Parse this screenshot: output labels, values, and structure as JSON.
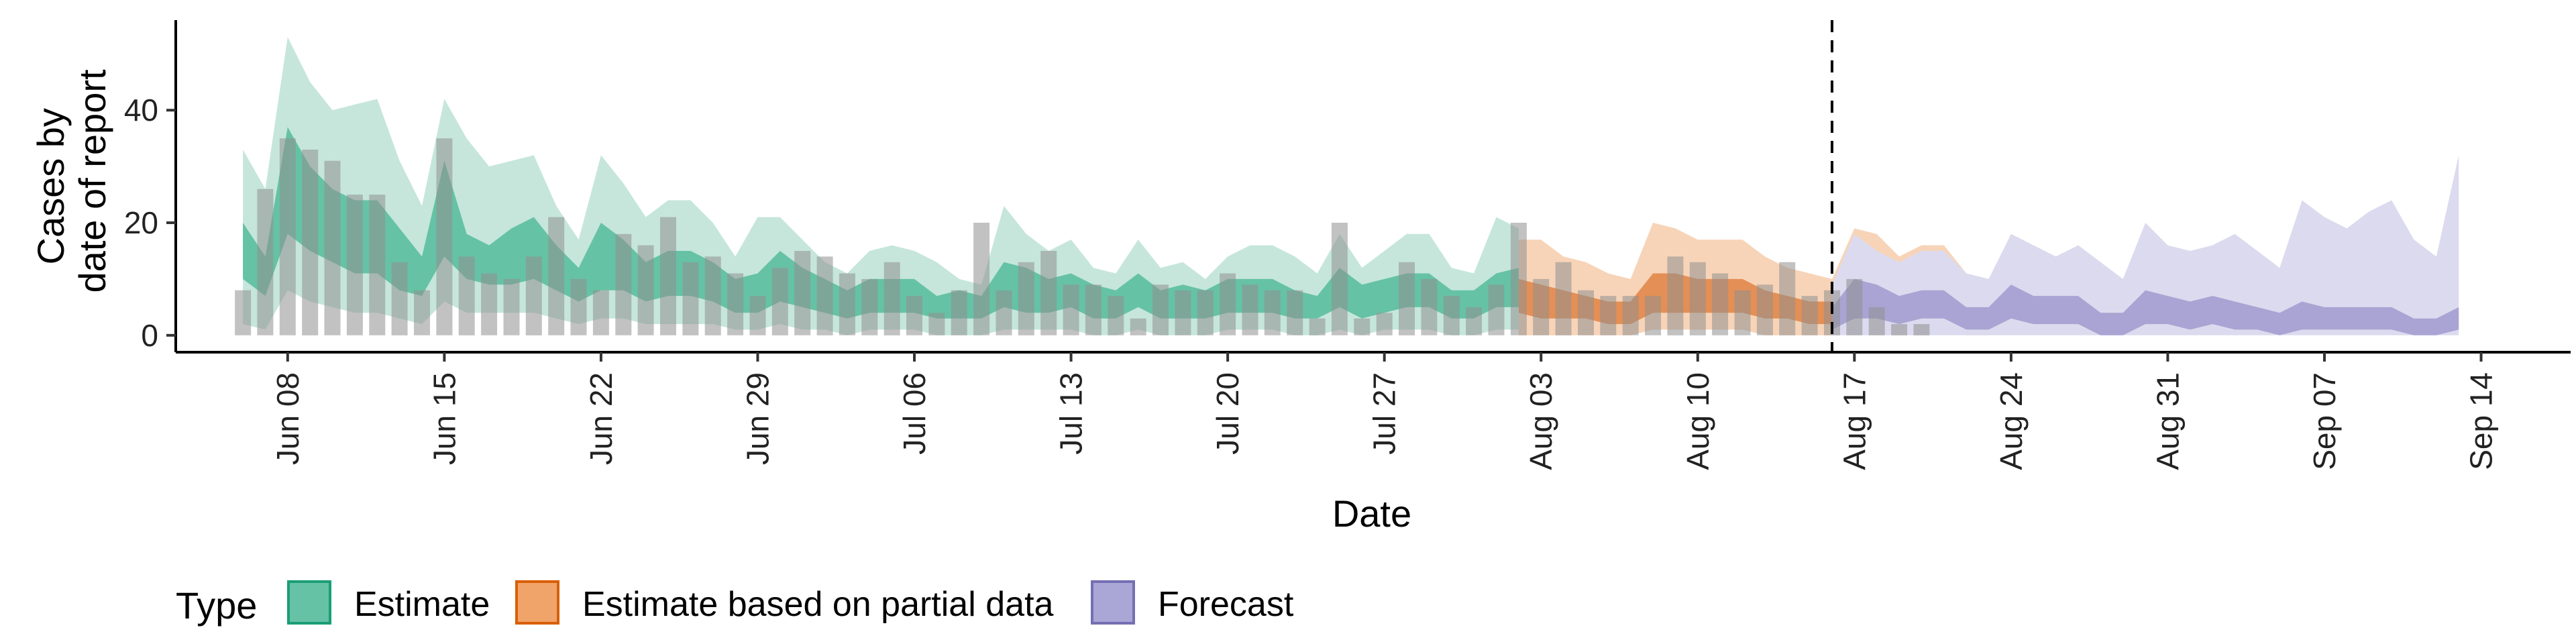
{
  "chart_data": {
    "type": "area",
    "xlabel": "Date",
    "ylabel_lines": [
      "Cases by",
      "date of report"
    ],
    "ylim": [
      -3,
      56
    ],
    "yticks": [
      0,
      20,
      40
    ],
    "xlim": [
      "2020-06-03",
      "2020-09-18"
    ],
    "xticks": [
      {
        "date": "2020-06-08",
        "label": "Jun 08"
      },
      {
        "date": "2020-06-15",
        "label": "Jun 15"
      },
      {
        "date": "2020-06-22",
        "label": "Jun 22"
      },
      {
        "date": "2020-06-29",
        "label": "Jun 29"
      },
      {
        "date": "2020-07-06",
        "label": "Jul 06"
      },
      {
        "date": "2020-07-13",
        "label": "Jul 13"
      },
      {
        "date": "2020-07-20",
        "label": "Jul 20"
      },
      {
        "date": "2020-07-27",
        "label": "Jul 27"
      },
      {
        "date": "2020-08-03",
        "label": "Aug 03"
      },
      {
        "date": "2020-08-10",
        "label": "Aug 10"
      },
      {
        "date": "2020-08-17",
        "label": "Aug 17"
      },
      {
        "date": "2020-08-24",
        "label": "Aug 24"
      },
      {
        "date": "2020-08-31",
        "label": "Aug 31"
      },
      {
        "date": "2020-09-07",
        "label": "Sep 07"
      },
      {
        "date": "2020-09-14",
        "label": "Sep 14"
      }
    ],
    "vline_date": "2020-08-16",
    "grid": false,
    "legend": {
      "position": "bottom",
      "title": "Type",
      "entries": [
        {
          "label": "Estimate",
          "fill": "#66c2a5",
          "stroke": "#1b9e77"
        },
        {
          "label": "Estimate based on partial data",
          "fill": "#f0a46a",
          "stroke": "#d95f02"
        },
        {
          "label": "Forecast",
          "fill": "#aaa6d6",
          "stroke": "#7570b3"
        }
      ]
    },
    "colors": {
      "estimate_outer": "#c6e6db",
      "estimate_inner": "#66c2a5",
      "partial_outer": "#f7d4b8",
      "partial_inner": "#e48f55",
      "forecast_outer": "#dcdaee",
      "forecast_inner": "#a9a4d3",
      "observed_bar": "#8f8f8f",
      "axis": "#000000"
    },
    "observed": {
      "start_date": "2020-06-06",
      "values": [
        8,
        26,
        35,
        33,
        31,
        25,
        25,
        13,
        8,
        35,
        14,
        11,
        10,
        14,
        21,
        10,
        8,
        18,
        16,
        21,
        13,
        14,
        11,
        7,
        12,
        15,
        14,
        11,
        10,
        13,
        7,
        4,
        8,
        20,
        8,
        13,
        15,
        9,
        9,
        7,
        3,
        9,
        8,
        8,
        11,
        9,
        8,
        8,
        3,
        20,
        3,
        4,
        13,
        10,
        7,
        5,
        9,
        20,
        10,
        13,
        8,
        7,
        7,
        7,
        14,
        13,
        11,
        8,
        9,
        13,
        7,
        8,
        10,
        5,
        2,
        2
      ]
    },
    "series": [
      {
        "name": "Estimate",
        "start_date": "2020-06-06",
        "outer_upper": [
          33,
          26,
          53,
          45,
          40,
          41,
          42,
          31,
          23,
          42,
          35,
          30,
          31,
          32,
          23,
          17,
          32,
          27,
          21,
          24,
          24,
          20,
          14,
          21,
          21,
          17,
          13,
          11,
          15,
          16,
          15,
          13,
          10,
          9,
          23,
          18,
          15,
          17,
          12,
          11,
          17,
          12,
          13,
          10,
          14,
          16,
          16,
          14,
          11,
          18,
          12,
          15,
          18,
          18,
          12,
          11,
          21,
          19
        ],
        "inner_upper": [
          20,
          14,
          37,
          30,
          26,
          24,
          24,
          19,
          14,
          31,
          18,
          16,
          19,
          21,
          16,
          12,
          20,
          17,
          13,
          15,
          15,
          13,
          10,
          11,
          15,
          12,
          10,
          8,
          10,
          10,
          10,
          7,
          8,
          7,
          13,
          12,
          10,
          11,
          9,
          8,
          11,
          8,
          9,
          8,
          10,
          10,
          10,
          8,
          7,
          12,
          9,
          10,
          11,
          11,
          8,
          8,
          11,
          12
        ],
        "inner_lower": [
          10,
          7,
          18,
          15,
          13,
          11,
          11,
          8,
          7,
          14,
          10,
          9,
          9,
          10,
          8,
          6,
          8,
          8,
          6,
          7,
          7,
          6,
          4,
          4,
          6,
          5,
          4,
          3,
          4,
          4,
          4,
          3,
          3,
          3,
          5,
          4,
          4,
          5,
          3,
          3,
          5,
          3,
          3,
          3,
          4,
          4,
          4,
          3,
          3,
          5,
          3,
          4,
          5,
          5,
          3,
          3,
          5,
          5
        ],
        "outer_lower": [
          2,
          1,
          8,
          6,
          5,
          4,
          4,
          3,
          2,
          6,
          4,
          4,
          4,
          4,
          3,
          2,
          3,
          3,
          2,
          2,
          2,
          2,
          1,
          1,
          2,
          1,
          1,
          0,
          1,
          1,
          1,
          0,
          0,
          0,
          1,
          1,
          1,
          1,
          0,
          0,
          1,
          0,
          0,
          0,
          1,
          1,
          1,
          0,
          0,
          1,
          0,
          1,
          1,
          1,
          0,
          0,
          1,
          1
        ]
      },
      {
        "name": "Estimate based on partial data",
        "start_date": "2020-08-02",
        "outer_upper": [
          17,
          17,
          14,
          13,
          11,
          10,
          20,
          19,
          17,
          17,
          17,
          14,
          12,
          11,
          10,
          19,
          18,
          14,
          16,
          16,
          11,
          8
        ],
        "inner_upper": [
          10,
          9,
          8,
          7,
          6,
          6,
          11,
          11,
          10,
          10,
          10,
          8,
          7,
          6,
          6,
          11,
          10,
          8,
          9,
          9,
          7,
          5
        ],
        "inner_lower": [
          4,
          3,
          3,
          3,
          2,
          2,
          4,
          4,
          4,
          4,
          4,
          3,
          3,
          2,
          2,
          4,
          4,
          3,
          3,
          3,
          2,
          2
        ],
        "outer_lower": [
          0,
          0,
          0,
          0,
          0,
          0,
          1,
          1,
          1,
          1,
          1,
          0,
          0,
          0,
          0,
          1,
          1,
          0,
          1,
          1,
          0,
          0
        ]
      },
      {
        "name": "Forecast",
        "start_date": "2020-08-16",
        "outer_upper": [
          9,
          18,
          15,
          13,
          15,
          15,
          11,
          10,
          18,
          16,
          14,
          16,
          13,
          10,
          20,
          16,
          15,
          16,
          18,
          15,
          12,
          24,
          21,
          19,
          22,
          24,
          17,
          14,
          32
        ],
        "inner_upper": [
          5,
          10,
          9,
          7,
          8,
          8,
          5,
          5,
          9,
          7,
          7,
          7,
          4,
          4,
          8,
          7,
          6,
          7,
          6,
          5,
          4,
          6,
          5,
          5,
          5,
          5,
          3,
          3,
          5
        ],
        "inner_lower": [
          1,
          3,
          3,
          2,
          3,
          3,
          1,
          1,
          3,
          2,
          2,
          2,
          0,
          0,
          2,
          2,
          1,
          2,
          1,
          1,
          0,
          1,
          1,
          1,
          1,
          1,
          0,
          0,
          1
        ],
        "outer_lower": [
          0,
          0,
          0,
          0,
          0,
          0,
          0,
          0,
          0,
          0,
          0,
          0,
          0,
          0,
          0,
          0,
          0,
          0,
          0,
          0,
          0,
          0,
          0,
          0,
          0,
          0,
          0,
          0,
          0
        ]
      }
    ]
  }
}
